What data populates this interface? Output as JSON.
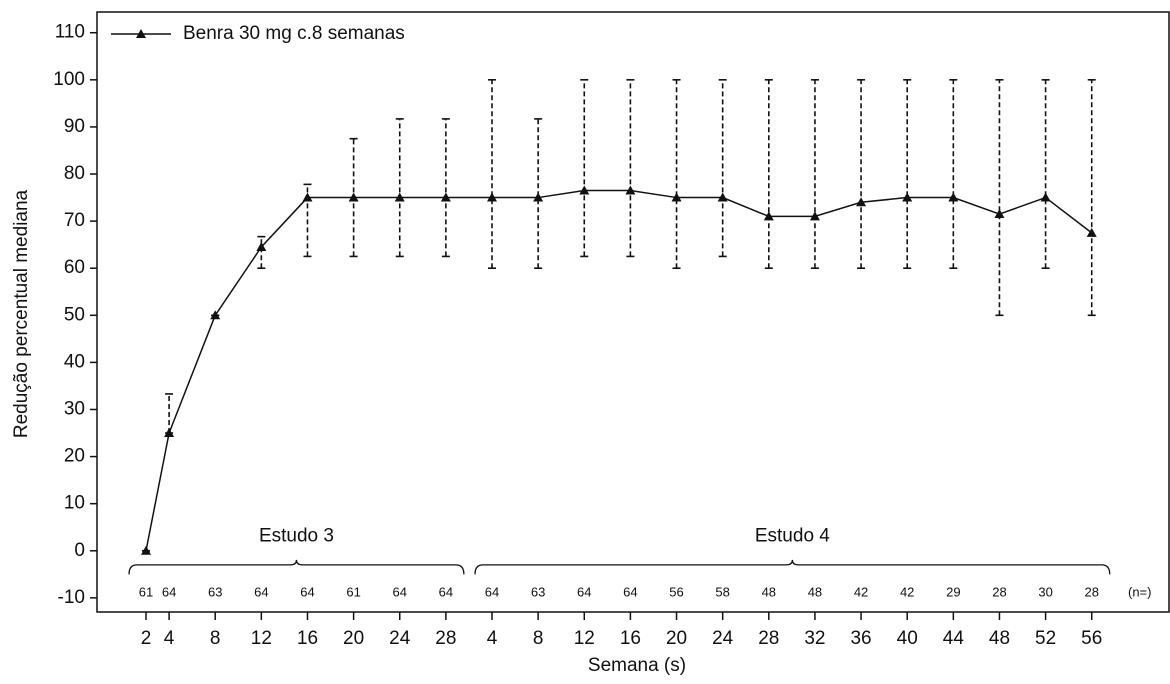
{
  "chart_data": {
    "type": "line",
    "x_label": "Semana (s)",
    "y_label": "Redução percentual mediana",
    "x": [
      2,
      4,
      8,
      12,
      16,
      20,
      24,
      28,
      32,
      36,
      40,
      44,
      48,
      52,
      56,
      60,
      64,
      68,
      72,
      76,
      80,
      84
    ],
    "series": [
      {
        "name": "Benra 30 mg c.8 semanas",
        "color": "#111111",
        "values": [
          0,
          25,
          50,
          64.5,
          75,
          75,
          75,
          75,
          75,
          75,
          76.5,
          76.5,
          75,
          75,
          71,
          71,
          74,
          75,
          75,
          71.5,
          75,
          67.5
        ],
        "lower": [
          0,
          25,
          50,
          60,
          62.5,
          62.5,
          62.5,
          62.5,
          60,
          60,
          62.5,
          62.5,
          60,
          62.5,
          60,
          60,
          60,
          60,
          60,
          50,
          60,
          50
        ],
        "upper": [
          0,
          33.3,
          50,
          66.7,
          77.8,
          87.5,
          91.7,
          91.7,
          100,
          91.7,
          100,
          100,
          100,
          100,
          100,
          100,
          100,
          100,
          100,
          100,
          100,
          100
        ]
      }
    ],
    "n_values": [
      61,
      64,
      63,
      64,
      64,
      61,
      64,
      64,
      64,
      63,
      64,
      64,
      56,
      58,
      48,
      48,
      42,
      42,
      29,
      28,
      30,
      28
    ],
    "n_label": "(n=)",
    "studies": [
      {
        "label": "Estudo 3",
        "range": [
          2,
          28
        ]
      },
      {
        "label": "Estudo 4",
        "range": [
          32,
          84
        ]
      }
    ],
    "xlim": [
      -2.25,
      90.7
    ],
    "xticks": [
      2,
      4,
      8,
      12,
      16,
      20,
      24,
      28,
      {
        "value": 32,
        "label": "4"
      },
      {
        "value": 36,
        "label": "8"
      },
      {
        "value": 40,
        "label": "12"
      },
      {
        "value": 44,
        "label": "16"
      },
      {
        "value": 48,
        "label": "20"
      },
      {
        "value": 52,
        "label": "24"
      },
      {
        "value": 56,
        "label": "28"
      },
      {
        "value": 60,
        "label": "32"
      },
      {
        "value": 64,
        "label": "36"
      },
      {
        "value": 68,
        "label": "40"
      },
      {
        "value": 72,
        "label": "44"
      },
      {
        "value": 76,
        "label": "48"
      },
      {
        "value": 80,
        "label": "52"
      },
      {
        "value": 84,
        "label": "56"
      }
    ],
    "ylim": [
      -13,
      114.4
    ],
    "yticks": [
      -10,
      0,
      10,
      20,
      30,
      40,
      50,
      60,
      70,
      80,
      90,
      100,
      110
    ],
    "legend": "upper left"
  }
}
